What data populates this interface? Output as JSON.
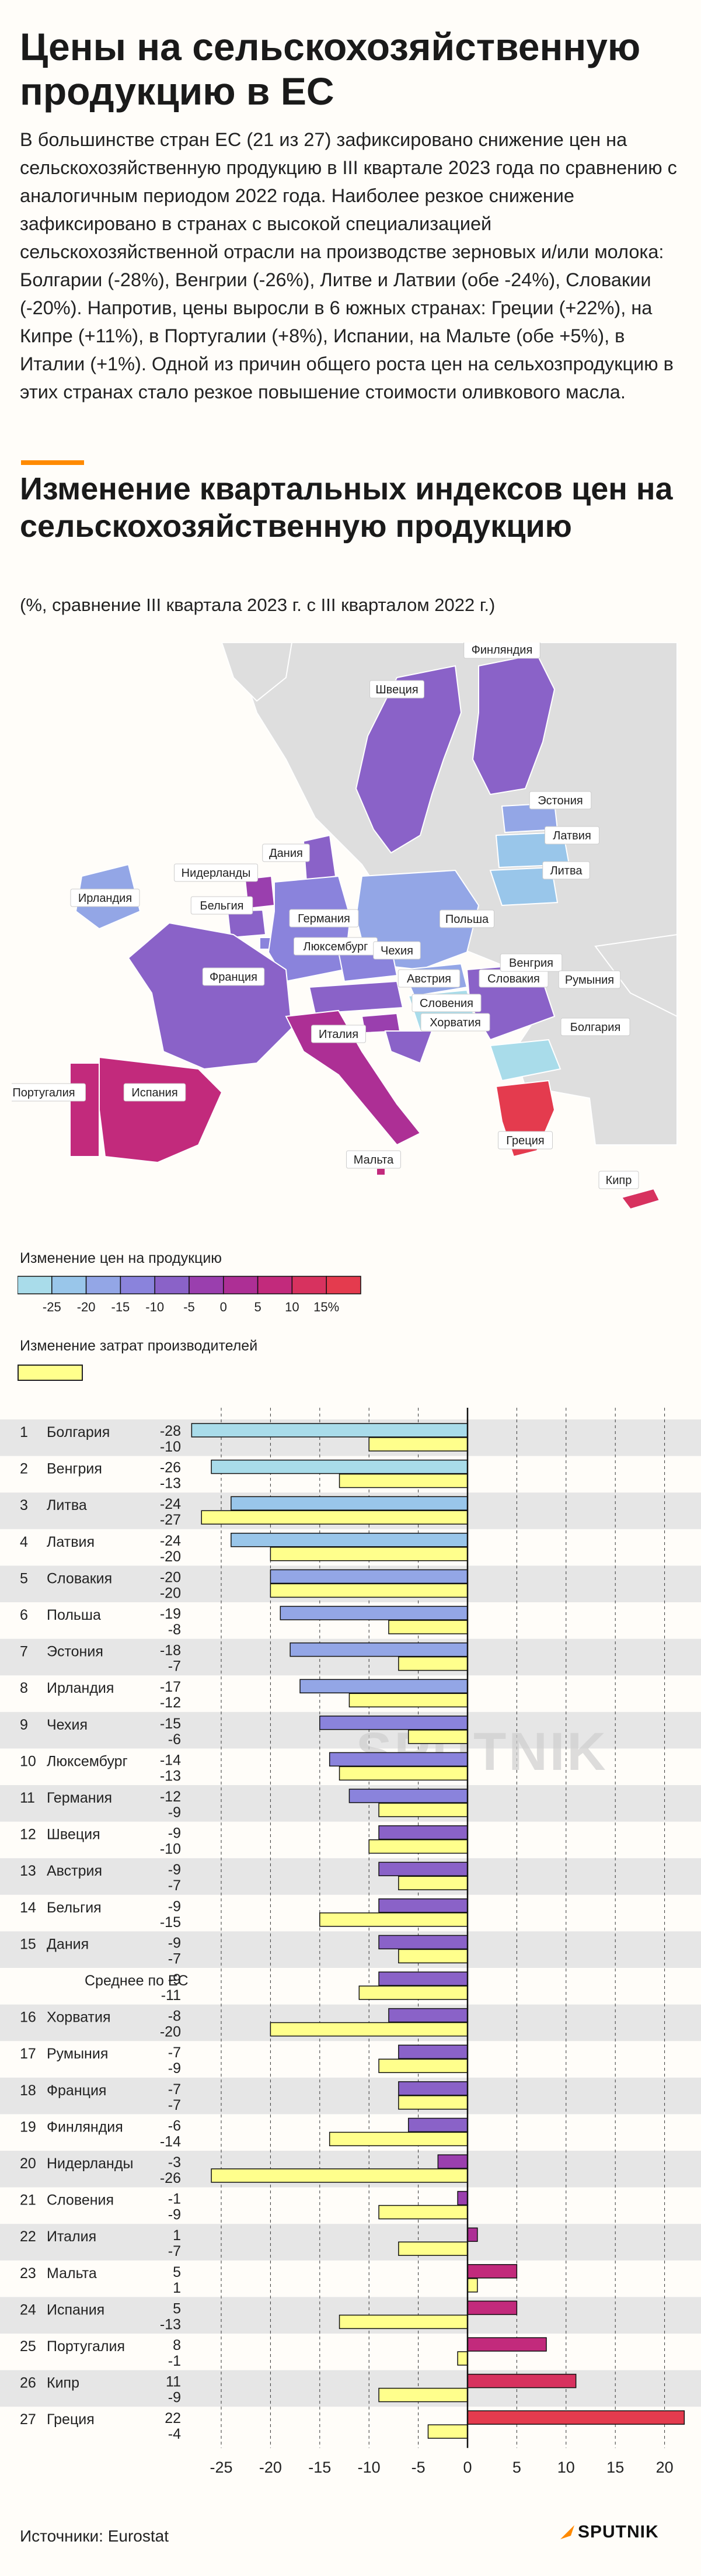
{
  "header": {
    "title": "Цены на сельскохозяйствен­ную продукцию в ЕС",
    "intro": "В большинстве стран ЕС (21 из 27) зафиксировано снижение цен на сельскохозяйственную продукцию в III квартале 2023 года по сравнению с аналогичным периодом 2022 года. Наиболее резкое снижение зафиксировано в странах с высокой специализа­цией сельскохозяйственной отрасли на производстве зерновых и/или молока:  Болгарии (-28%), Венгрии (-26%), Литве и Латвии (обе -24%), Словакии (-20%). Напротив, цены выросли в 6 южных странах: Греции (+22%), на Кипре (+11%), в Португалии (+8%), Испании, на Мальте (обе +5%), в Италии (+1%). Одной из причин общего роста цен на сельхозпродукцию в этих странах стало резкое повышение стоимости оливкового масла."
  },
  "section": {
    "title": "Изменение квартальных индексов цен на сельскохозяйственную продукцию",
    "note": "(%, сравнение III квартала 2023 г. с III кварталом 2022 г.)"
  },
  "map": {
    "labels": [
      "Финляндия",
      "Швеция",
      "Эстония",
      "Латвия",
      "Литва",
      "Дания",
      "Ирландия",
      "Нидерланды",
      "Германия",
      "Польша",
      "Бельгия",
      "Люксембург",
      "Чехия",
      "Словакия",
      "Австрия",
      "Венгрия",
      "Словения",
      "Румыния",
      "Франция",
      "Хорватия",
      "Италия",
      "Болгария",
      "Португалия",
      "Испания",
      "Греция",
      "Мальта",
      "Кипр"
    ]
  },
  "legend": {
    "price_title": "Изменение цен на продукцию",
    "price_ticks": [
      "-25",
      "-20",
      "-15",
      "-10",
      "-5",
      "0",
      "5",
      "10",
      "15%"
    ],
    "cost_title": "Изменение затрат производителей"
  },
  "colors": {
    "scale": [
      "#a9dcea",
      "#99c6ea",
      "#93a6e6",
      "#8a83dc",
      "#8a62c8",
      "#9a3fae",
      "#ad2f95",
      "#c22a7c",
      "#d7325f",
      "#e43b4e"
    ],
    "costs": "#ffff8c",
    "zebra": "#e6e6e6",
    "accent": "#ff8a00"
  },
  "chart_data": {
    "type": "bar",
    "orientation": "horizontal",
    "categories": [
      "Болгария",
      "Венгрия",
      "Литва",
      "Латвия",
      "Словакия",
      "Польша",
      "Эстония",
      "Ирландия",
      "Чехия",
      "Люксембург",
      "Германия",
      "Швеция",
      "Австрия",
      "Бельгия",
      "Дания",
      "Среднее по ЕС",
      "Хорватия",
      "Румыния",
      "Франция",
      "Финляндия",
      "Нидерланды",
      "Словения",
      "Италия",
      "Мальта",
      "Испания",
      "Португалия",
      "Кипр",
      "Греция"
    ],
    "ranks": [
      "1",
      "2",
      "3",
      "4",
      "5",
      "6",
      "7",
      "8",
      "9",
      "10",
      "11",
      "12",
      "13",
      "14",
      "15",
      "",
      "16",
      "17",
      "18",
      "19",
      "20",
      "21",
      "22",
      "23",
      "24",
      "25",
      "26",
      "27"
    ],
    "series": [
      {
        "name": "Изменение цен на продукцию",
        "values": [
          -28,
          -26,
          -24,
          -24,
          -20,
          -19,
          -18,
          -17,
          -15,
          -14,
          -12,
          -9,
          -9,
          -9,
          -9,
          -9,
          -8,
          -7,
          -7,
          -6,
          -3,
          -1,
          1,
          5,
          5,
          8,
          11,
          22
        ]
      },
      {
        "name": "Изменение затрат производителей",
        "values": [
          -10,
          -13,
          -27,
          -20,
          -20,
          -8,
          -7,
          -12,
          -6,
          -13,
          -9,
          -10,
          -7,
          -15,
          -7,
          -11,
          -20,
          -9,
          -7,
          -14,
          -26,
          -9,
          -7,
          1,
          -13,
          -1,
          -9,
          -4
        ]
      }
    ],
    "xlim": [
      -27.5,
      22
    ],
    "xticks": [
      "-25",
      "-20",
      "-15",
      "-10",
      "-5",
      "0",
      "5",
      "10",
      "15",
      "20"
    ],
    "grid": true
  },
  "footer": {
    "source": "Источники: Eurostat",
    "logo": "SPUTNIK",
    "watermark": "SPUTNIK"
  }
}
